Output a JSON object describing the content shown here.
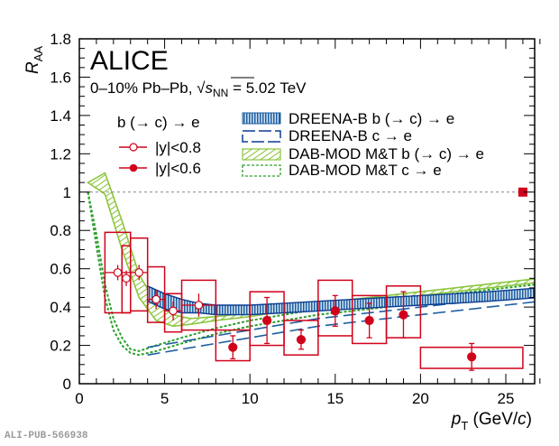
{
  "chart_data": {
    "type": "scatter",
    "title": "ALICE",
    "subtitle": "0–10% Pb–Pb, √s_NN = 5.02 TeV",
    "subtitle_parts": {
      "prefix": "0–10% Pb–Pb, ",
      "s": "s",
      "sub": "NN",
      "suffix": " = 5.02 TeV"
    },
    "xlabel": {
      "main": "p",
      "sub": "T",
      "unit_prefix": " (GeV/",
      "unit_c": "c",
      "unit_suffix": ")"
    },
    "ylabel": {
      "main": "R",
      "sub": "AA"
    },
    "xlim": [
      0,
      27
    ],
    "ylim": [
      0,
      1.8
    ],
    "xticks": [
      0,
      5,
      10,
      15,
      20,
      25
    ],
    "xtick_labels": [
      "0",
      "5",
      "10",
      "15",
      "20",
      "25"
    ],
    "yticks": [
      0,
      0.2,
      0.4,
      0.6,
      0.8,
      1,
      1.2,
      1.4,
      1.6,
      1.8
    ],
    "ytick_labels": [
      "0",
      "0.2",
      "0.4",
      "0.6",
      "0.8",
      "1",
      "1.2",
      "1.4",
      "1.6",
      "1.8"
    ],
    "reference_line": 1.0,
    "normalization_uncertainty": {
      "x": 26,
      "y": 1.0
    },
    "colors": {
      "data": "#d0021b",
      "dreena_b": "#1f5fa0",
      "dreena_c": "#0b3d91",
      "dabmod_b": "#8cc63f",
      "dabmod_c": "#2ca02c",
      "ref_line": "#888888"
    },
    "legend": {
      "data_header": "b (→ c) → e",
      "entries": [
        {
          "label": "|y|<0.8",
          "marker": "open-circle"
        },
        {
          "label": "|y|<0.6",
          "marker": "filled-circle"
        }
      ],
      "models": [
        {
          "label": "DREENA-B b (→ c) → e",
          "style": "hatched-band-blue"
        },
        {
          "label": "DREENA-B c → e",
          "style": "dashed-blue"
        },
        {
          "label": "DAB-MOD M&T b (→ c) → e",
          "style": "hatched-band-green"
        },
        {
          "label": "DAB-MOD M&T c → e",
          "style": "dotted-green"
        }
      ]
    },
    "series": [
      {
        "name": "|y|<0.8",
        "marker": "open-circle",
        "points": [
          {
            "x": 2.25,
            "y": 0.58,
            "xlo": 1.5,
            "xhi": 3.0,
            "stat": 0.04,
            "sys_lo": 0.37,
            "sys_hi": 0.79
          },
          {
            "x": 2.75,
            "y": 0.55,
            "xlo": 2.5,
            "xhi": 3.0,
            "stat": 0.04,
            "sys_lo": 0.37,
            "sys_hi": 0.72
          },
          {
            "x": 3.5,
            "y": 0.58,
            "xlo": 3.0,
            "xhi": 4.0,
            "stat": 0.04,
            "sys_lo": 0.38,
            "sys_hi": 0.76
          },
          {
            "x": 4.5,
            "y": 0.44,
            "xlo": 4.0,
            "xhi": 5.0,
            "stat": 0.05,
            "sys_lo": 0.32,
            "sys_hi": 0.61
          },
          {
            "x": 5.5,
            "y": 0.38,
            "xlo": 5.0,
            "xhi": 6.0,
            "stat": 0.05,
            "sys_lo": 0.27,
            "sys_hi": 0.47
          },
          {
            "x": 7.0,
            "y": 0.41,
            "xlo": 6.0,
            "xhi": 8.0,
            "stat": 0.06,
            "sys_lo": 0.28,
            "sys_hi": 0.54
          }
        ]
      },
      {
        "name": "|y|<0.6",
        "marker": "filled-circle",
        "points": [
          {
            "x": 9,
            "y": 0.19,
            "xlo": 8,
            "xhi": 10,
            "stat": 0.06,
            "sys_lo": 0.12,
            "sys_hi": 0.28
          },
          {
            "x": 11,
            "y": 0.33,
            "xlo": 10,
            "xhi": 12,
            "stat": 0.12,
            "sys_lo": 0.2,
            "sys_hi": 0.48
          },
          {
            "x": 13,
            "y": 0.23,
            "xlo": 12,
            "xhi": 14,
            "stat": 0.05,
            "sys_lo": 0.15,
            "sys_hi": 0.33
          },
          {
            "x": 15,
            "y": 0.38,
            "xlo": 14,
            "xhi": 16,
            "stat": 0.08,
            "sys_lo": 0.25,
            "sys_hi": 0.54
          },
          {
            "x": 17,
            "y": 0.33,
            "xlo": 16,
            "xhi": 18,
            "stat": 0.09,
            "sys_lo": 0.21,
            "sys_hi": 0.46
          },
          {
            "x": 19,
            "y": 0.36,
            "xlo": 18,
            "xhi": 20,
            "stat": 0.12,
            "sys_lo": 0.24,
            "sys_hi": 0.51
          },
          {
            "x": 23,
            "y": 0.14,
            "xlo": 20,
            "xhi": 26,
            "stat": 0.07,
            "sys_lo": 0.08,
            "sys_hi": 0.19
          }
        ]
      }
    ],
    "models": [
      {
        "name": "DREENA-B b (→ c) → e",
        "type": "band",
        "x": [
          4,
          5,
          6,
          7,
          8,
          10,
          12,
          14,
          16,
          18,
          20,
          22,
          24,
          27
        ],
        "lo": [
          0.43,
          0.39,
          0.37,
          0.37,
          0.36,
          0.36,
          0.37,
          0.38,
          0.39,
          0.4,
          0.41,
          0.42,
          0.43,
          0.45
        ],
        "hi": [
          0.51,
          0.47,
          0.44,
          0.42,
          0.41,
          0.41,
          0.42,
          0.43,
          0.44,
          0.45,
          0.46,
          0.47,
          0.48,
          0.5
        ]
      },
      {
        "name": "DREENA-B c → e",
        "type": "band-dashed",
        "x": [
          4,
          6,
          8,
          10,
          12,
          14,
          16,
          18,
          20,
          22,
          24,
          27
        ],
        "lo": [
          0.15,
          0.18,
          0.21,
          0.24,
          0.27,
          0.3,
          0.32,
          0.34,
          0.36,
          0.38,
          0.4,
          0.43
        ],
        "hi": [
          0.19,
          0.22,
          0.25,
          0.28,
          0.31,
          0.34,
          0.36,
          0.38,
          0.4,
          0.42,
          0.44,
          0.47
        ]
      },
      {
        "name": "DAB-MOD M&T b (→ c) → e",
        "type": "band",
        "x": [
          0.5,
          1.5,
          2.5,
          3.5,
          4.5,
          5.5,
          6.5,
          8,
          10,
          12,
          14,
          16,
          18,
          20,
          22,
          24,
          27
        ],
        "lo": [
          1.05,
          0.99,
          0.7,
          0.45,
          0.33,
          0.3,
          0.31,
          0.33,
          0.35,
          0.38,
          0.4,
          0.42,
          0.44,
          0.46,
          0.48,
          0.5,
          0.53
        ],
        "hi": [
          1.05,
          1.1,
          0.85,
          0.57,
          0.42,
          0.36,
          0.34,
          0.35,
          0.37,
          0.4,
          0.42,
          0.44,
          0.46,
          0.48,
          0.5,
          0.52,
          0.55
        ]
      },
      {
        "name": "DAB-MOD M&T c → e",
        "type": "band-dotted",
        "x": [
          0.5,
          1.0,
          1.5,
          2.0,
          2.5,
          3.0,
          3.5,
          4.5,
          6,
          8,
          10,
          12,
          14,
          16,
          18,
          20,
          22,
          24,
          27
        ],
        "lo": [
          1.0,
          0.72,
          0.45,
          0.28,
          0.2,
          0.16,
          0.15,
          0.17,
          0.21,
          0.26,
          0.3,
          0.33,
          0.36,
          0.38,
          0.4,
          0.42,
          0.44,
          0.46,
          0.49
        ],
        "hi": [
          1.0,
          0.78,
          0.52,
          0.34,
          0.24,
          0.18,
          0.17,
          0.2,
          0.24,
          0.29,
          0.33,
          0.36,
          0.39,
          0.41,
          0.43,
          0.45,
          0.47,
          0.49,
          0.52
        ]
      }
    ]
  },
  "footer": {
    "id_label": "ALI-PUB-566938"
  }
}
